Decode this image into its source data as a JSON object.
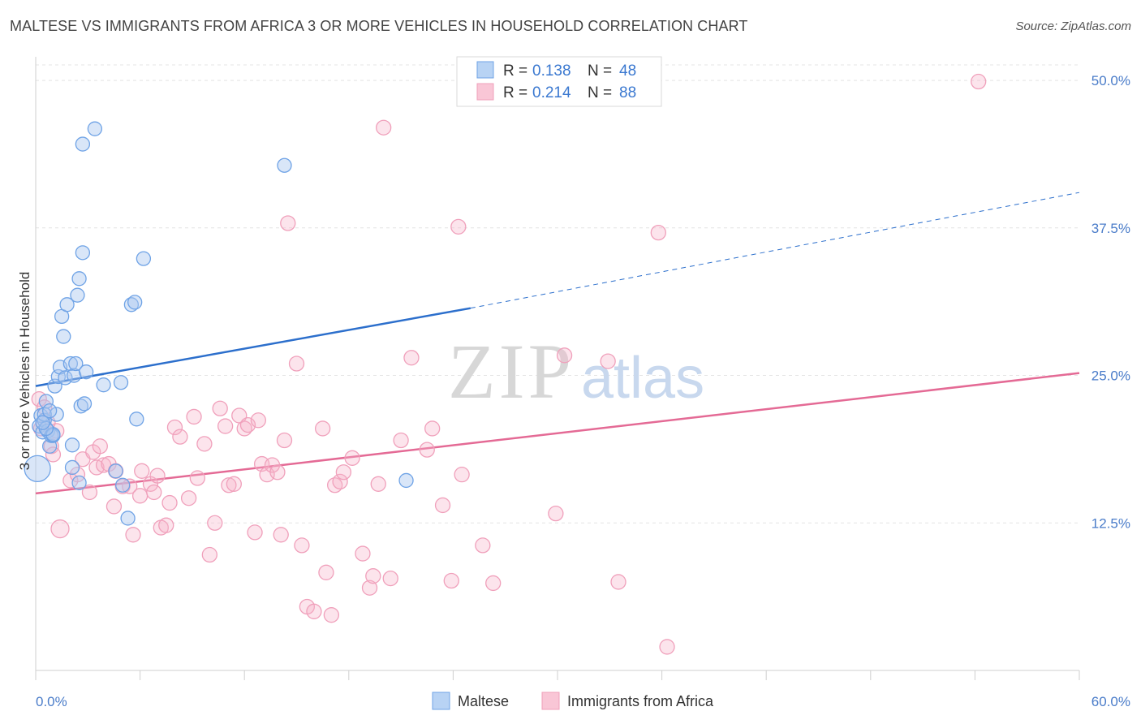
{
  "header": {
    "title": "MALTESE VS IMMIGRANTS FROM AFRICA 3 OR MORE VEHICLES IN HOUSEHOLD CORRELATION CHART",
    "source": "Source: ZipAtlas.com"
  },
  "watermark": {
    "zip": "ZIP",
    "atlas": "atlas"
  },
  "legend": {
    "r_label": "R = ",
    "n_label": "N = ",
    "rows": [
      {
        "series": "Maltese",
        "r": "0.138",
        "n": "48"
      },
      {
        "series": "Immigrants from Africa",
        "r": "0.214",
        "n": "88"
      }
    ]
  },
  "chart_data": {
    "type": "scatter",
    "title": "MALTESE VS IMMIGRANTS FROM AFRICA 3 OR MORE VEHICLES IN HOUSEHOLD CORRELATION CHART",
    "xlabel": "",
    "ylabel": "3 or more Vehicles in Household",
    "xlim": [
      0,
      60
    ],
    "ylim": [
      0,
      52
    ],
    "x_tick_labels": [
      "0.0%",
      "60.0%"
    ],
    "y_ticks": [
      12.5,
      25.0,
      37.5,
      50.0
    ],
    "y_tick_labels": [
      "12.5%",
      "25.0%",
      "37.5%",
      "50.0%"
    ],
    "grid": true,
    "legend_position": "top-center",
    "colors": {
      "Maltese": "#6fa3e6",
      "Immigrants from Africa": "#f0a0bb",
      "maltese_line": "#2c6fcc",
      "africa_line": "#e46a95"
    },
    "series": [
      {
        "name": "Maltese",
        "points": [
          [
            0.2,
            20.7
          ],
          [
            0.3,
            21.6
          ],
          [
            0.4,
            20.2
          ],
          [
            0.5,
            21.2
          ],
          [
            0.6,
            22.8
          ],
          [
            0.7,
            20.3
          ],
          [
            0.8,
            19.0
          ],
          [
            0.9,
            19.9
          ],
          [
            1.0,
            19.9
          ],
          [
            1.1,
            24.1
          ],
          [
            1.2,
            21.7
          ],
          [
            1.3,
            24.9
          ],
          [
            1.4,
            25.7
          ],
          [
            1.5,
            30.0
          ],
          [
            1.6,
            28.3
          ],
          [
            1.7,
            24.8
          ],
          [
            1.8,
            31.0
          ],
          [
            2.0,
            26.0
          ],
          [
            2.1,
            17.2
          ],
          [
            2.1,
            19.1
          ],
          [
            2.2,
            25.0
          ],
          [
            2.3,
            26.0
          ],
          [
            2.4,
            31.8
          ],
          [
            2.5,
            33.2
          ],
          [
            2.5,
            15.9
          ],
          [
            2.6,
            22.4
          ],
          [
            2.7,
            35.4
          ],
          [
            2.7,
            44.6
          ],
          [
            2.8,
            22.6
          ],
          [
            2.9,
            25.3
          ],
          [
            3.4,
            45.9
          ],
          [
            3.9,
            24.2
          ],
          [
            4.6,
            16.9
          ],
          [
            4.9,
            24.4
          ],
          [
            5.0,
            15.7
          ],
          [
            5.3,
            12.9
          ],
          [
            5.5,
            31.0
          ],
          [
            5.7,
            31.2
          ],
          [
            5.8,
            21.3
          ],
          [
            6.2,
            34.9
          ],
          [
            14.3,
            42.8
          ],
          [
            21.3,
            16.1
          ],
          [
            0.1,
            17.1
          ],
          [
            0.5,
            21.7
          ],
          [
            1.0,
            20.0
          ],
          [
            0.8,
            22.0
          ],
          [
            0.6,
            20.5
          ],
          [
            0.4,
            21.0
          ]
        ]
      },
      {
        "name": "Immigrants from Africa",
        "points": [
          [
            0.2,
            23.0
          ],
          [
            0.3,
            20.5
          ],
          [
            0.5,
            22.3
          ],
          [
            0.7,
            21.0
          ],
          [
            0.9,
            19.0
          ],
          [
            1.0,
            18.3
          ],
          [
            1.2,
            20.3
          ],
          [
            1.4,
            12.0
          ],
          [
            2.0,
            16.1
          ],
          [
            2.4,
            16.6
          ],
          [
            2.7,
            17.9
          ],
          [
            3.1,
            15.1
          ],
          [
            3.3,
            18.5
          ],
          [
            3.5,
            17.2
          ],
          [
            3.7,
            19.0
          ],
          [
            3.9,
            17.4
          ],
          [
            4.2,
            17.5
          ],
          [
            4.5,
            13.9
          ],
          [
            4.6,
            16.9
          ],
          [
            5.0,
            15.6
          ],
          [
            5.4,
            15.6
          ],
          [
            5.6,
            11.5
          ],
          [
            6.0,
            14.8
          ],
          [
            6.1,
            16.9
          ],
          [
            6.6,
            15.8
          ],
          [
            6.8,
            15.1
          ],
          [
            7.0,
            16.5
          ],
          [
            7.2,
            12.1
          ],
          [
            7.5,
            12.3
          ],
          [
            7.7,
            14.2
          ],
          [
            8.0,
            20.6
          ],
          [
            8.3,
            19.8
          ],
          [
            8.8,
            14.6
          ],
          [
            9.1,
            21.5
          ],
          [
            9.3,
            16.3
          ],
          [
            9.7,
            19.2
          ],
          [
            10.0,
            9.8
          ],
          [
            10.3,
            12.5
          ],
          [
            10.6,
            22.2
          ],
          [
            10.9,
            20.7
          ],
          [
            11.1,
            15.7
          ],
          [
            11.4,
            15.8
          ],
          [
            11.7,
            21.6
          ],
          [
            12.0,
            20.5
          ],
          [
            12.2,
            20.8
          ],
          [
            12.6,
            11.7
          ],
          [
            12.8,
            21.2
          ],
          [
            13.0,
            17.5
          ],
          [
            13.3,
            16.6
          ],
          [
            13.6,
            17.4
          ],
          [
            13.9,
            16.8
          ],
          [
            14.1,
            11.5
          ],
          [
            14.3,
            19.5
          ],
          [
            14.5,
            37.9
          ],
          [
            15.0,
            26.0
          ],
          [
            15.3,
            10.6
          ],
          [
            15.6,
            5.4
          ],
          [
            16.0,
            5.0
          ],
          [
            16.5,
            20.5
          ],
          [
            16.7,
            8.3
          ],
          [
            17.0,
            4.7
          ],
          [
            17.2,
            15.7
          ],
          [
            17.5,
            16.0
          ],
          [
            17.7,
            16.8
          ],
          [
            18.2,
            18.0
          ],
          [
            18.8,
            9.9
          ],
          [
            19.2,
            7.0
          ],
          [
            19.4,
            8.0
          ],
          [
            19.7,
            15.8
          ],
          [
            20.4,
            7.8
          ],
          [
            21.0,
            19.5
          ],
          [
            21.6,
            26.5
          ],
          [
            22.5,
            18.7
          ],
          [
            22.8,
            20.5
          ],
          [
            23.4,
            14.0
          ],
          [
            23.9,
            7.6
          ],
          [
            24.3,
            37.6
          ],
          [
            24.5,
            16.6
          ],
          [
            25.7,
            10.6
          ],
          [
            26.3,
            7.4
          ],
          [
            29.9,
            13.3
          ],
          [
            30.4,
            26.7
          ],
          [
            32.9,
            26.2
          ],
          [
            33.5,
            7.5
          ],
          [
            35.8,
            37.1
          ],
          [
            36.3,
            2.0
          ],
          [
            54.2,
            49.9
          ],
          [
            20.0,
            46.0
          ]
        ]
      }
    ],
    "trend_lines": [
      {
        "series": "Maltese",
        "x0": 0,
        "y0": 24.1,
        "x1": 25,
        "y1": 30.7,
        "dashed_to_x": 60,
        "dashed_to_y": 40.5
      },
      {
        "series": "Immigrants from Africa",
        "x0": 0,
        "y0": 15.0,
        "x1": 60,
        "y1": 25.2
      }
    ]
  }
}
